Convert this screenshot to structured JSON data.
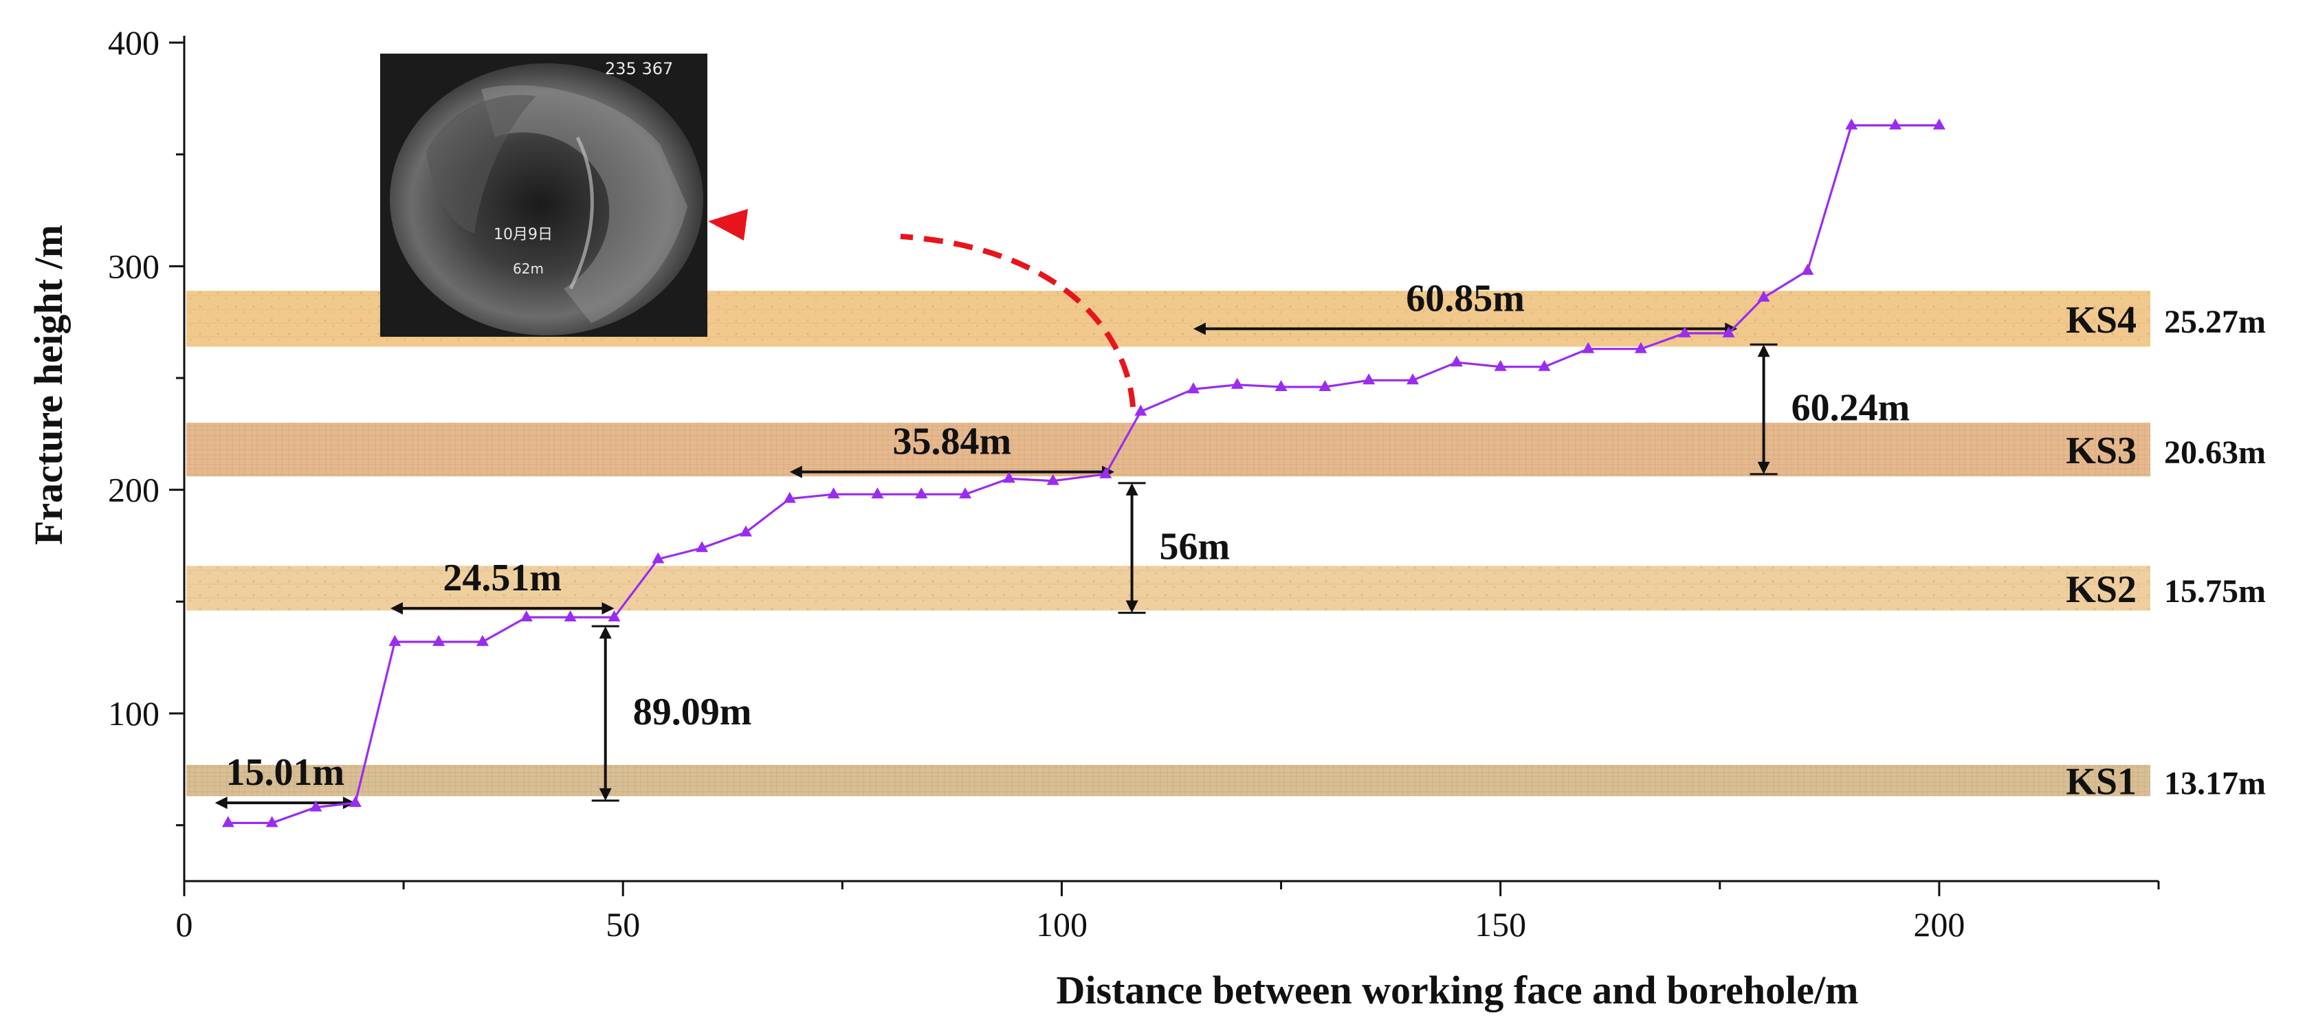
{
  "chart_data": {
    "type": "line",
    "title": "",
    "xlabel": "Distance between working face and borehole/m",
    "ylabel": "Fracture height /m",
    "xlim": [
      0,
      225
    ],
    "ylim": [
      25,
      400
    ],
    "x_ticks": [
      0,
      50,
      100,
      150,
      200
    ],
    "y_ticks": [
      100,
      200,
      300,
      400
    ],
    "grid": false,
    "series": [
      {
        "color": "#9a2cf0",
        "marker": "triangle",
        "points": [
          [
            5,
            51
          ],
          [
            10,
            51
          ],
          [
            15,
            58
          ],
          [
            19.5,
            60
          ],
          [
            24,
            132
          ],
          [
            29,
            132
          ],
          [
            34,
            132
          ],
          [
            39,
            143
          ],
          [
            44,
            143
          ],
          [
            49,
            143
          ],
          [
            54,
            169
          ],
          [
            59,
            174
          ],
          [
            64,
            181
          ],
          [
            69,
            196
          ],
          [
            74,
            198
          ],
          [
            79,
            198
          ],
          [
            84,
            198
          ],
          [
            89,
            198
          ],
          [
            94,
            205
          ],
          [
            99,
            204
          ],
          [
            105,
            207
          ],
          [
            109,
            235
          ],
          [
            115,
            245
          ],
          [
            120,
            247
          ],
          [
            125,
            246
          ],
          [
            130,
            246
          ],
          [
            135,
            249
          ],
          [
            140,
            249
          ],
          [
            145,
            257
          ],
          [
            150,
            255
          ],
          [
            155,
            255
          ],
          [
            160,
            263
          ],
          [
            166,
            263
          ],
          [
            171,
            270
          ],
          [
            176,
            270
          ],
          [
            180,
            286
          ],
          [
            185,
            298
          ],
          [
            190,
            363
          ],
          [
            195,
            363
          ],
          [
            200,
            363
          ]
        ]
      }
    ],
    "strata": [
      {
        "name": "KS1",
        "thickness": "13.17m",
        "y_range": [
          63,
          77
        ],
        "color": "#d9bf95"
      },
      {
        "name": "KS2",
        "thickness": "15.75m",
        "y_range": [
          146,
          166
        ],
        "color": "#efcf9e"
      },
      {
        "name": "KS3",
        "thickness": "20.63m",
        "y_range": [
          206,
          230
        ],
        "color": "#e7b98f"
      },
      {
        "name": "KS4",
        "thickness": "25.27m",
        "y_range": [
          264,
          289
        ],
        "color": "#f1c98c"
      }
    ],
    "horizontal_spans": [
      {
        "label": "15.01m",
        "x_from": 3.5,
        "x_to": 19.5,
        "y": 60
      },
      {
        "label": "24.51m",
        "x_from": 23.5,
        "x_to": 49,
        "y": 147
      },
      {
        "label": "35.84m",
        "x_from": 69,
        "x_to": 106,
        "y": 208
      },
      {
        "label": "60.85m",
        "x_from": 115,
        "x_to": 177,
        "y": 272
      }
    ],
    "vertical_spans": [
      {
        "label": "89.09m",
        "x": 48,
        "y_from": 61,
        "y_to": 139
      },
      {
        "label": "56m",
        "x": 108,
        "y_from": 145,
        "y_to": 203
      },
      {
        "label": "60.24m",
        "x": 180,
        "y_from": 207,
        "y_to": 265
      }
    ],
    "inset_image": {
      "corner_text": "235  367",
      "caption_line1": "10月9日",
      "caption_line2": "62m"
    }
  }
}
